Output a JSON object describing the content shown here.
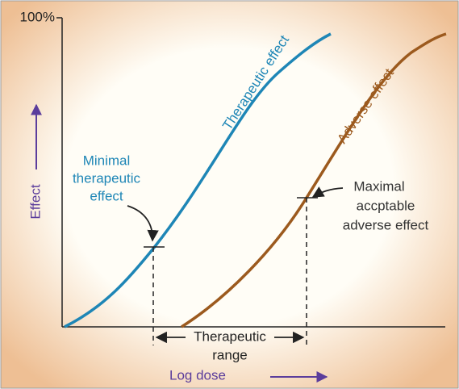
{
  "axis": {
    "y_top_label": "100%",
    "y_label": "Effect",
    "x_label": "Log dose"
  },
  "curves": [
    {
      "label": "Therapeutic effect"
    },
    {
      "label": "Adverse effect"
    }
  ],
  "annotations": {
    "minimal": [
      "Minimal",
      "therapeutic",
      "effect"
    ],
    "maximal": [
      "Maximal",
      "accptable",
      "adverse effect"
    ],
    "range": [
      "Therapeutic",
      "range"
    ]
  }
}
